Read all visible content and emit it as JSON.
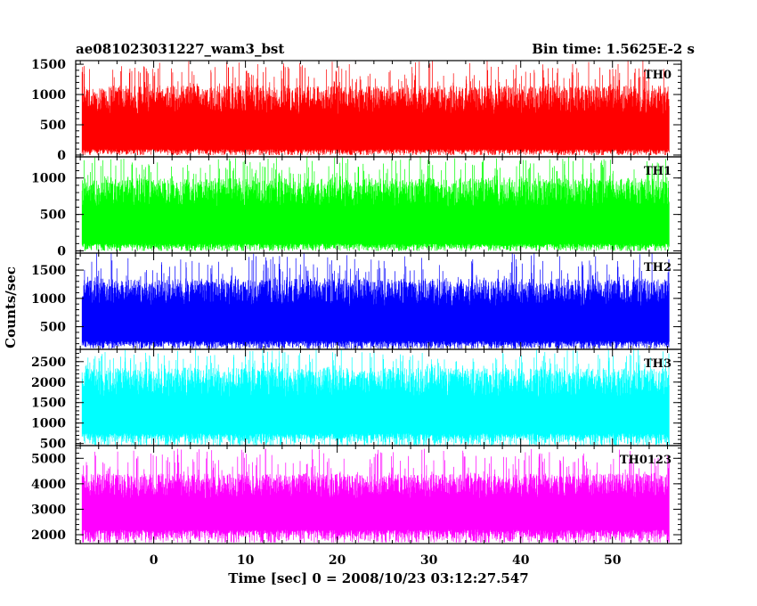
{
  "header": {
    "title": "ae081023031227_wam3_bst",
    "bin_time": "Bin time: 1.5625E-2 s"
  },
  "chart_data": {
    "type": "line",
    "xlabel": "Time [sec] 0 = 2008/10/23 03:12:27.547",
    "ylabel": "Counts/sec",
    "xlim": [
      -8.5,
      57.5
    ],
    "x_range_data": [
      -7.8,
      56.2
    ],
    "x_ticks": [
      0,
      10,
      20,
      30,
      40,
      50
    ],
    "x_tick_labels": [
      "0",
      "10",
      "20",
      "30",
      "40",
      "50"
    ],
    "panels": [
      {
        "name": "TH0",
        "color": "#ff0000",
        "ylim": [
          -30,
          1560
        ],
        "yticks": [
          0,
          500,
          1000,
          1500
        ],
        "ytick_labels": [
          "0",
          "500",
          "1000",
          "1500"
        ],
        "base_low": 100,
        "base_high": 1150,
        "spike_max": 1560,
        "floor_min": 0
      },
      {
        "name": "TH1",
        "color": "#00ff00",
        "ylim": [
          -30,
          1290
        ],
        "yticks": [
          0,
          500,
          1000
        ],
        "ytick_labels": [
          "0",
          "500",
          "1000"
        ],
        "base_low": 100,
        "base_high": 1000,
        "spike_max": 1290,
        "floor_min": 0
      },
      {
        "name": "TH2",
        "color": "#0000ff",
        "ylim": [
          100,
          1800
        ],
        "yticks": [
          500,
          1000,
          1500
        ],
        "ytick_labels": [
          "500",
          "1000",
          "1500"
        ],
        "base_low": 250,
        "base_high": 1350,
        "spike_max": 1800,
        "floor_min": 110
      },
      {
        "name": "TH3",
        "color": "#00ffff",
        "ylim": [
          450,
          2800
        ],
        "yticks": [
          500,
          1000,
          1500,
          2000,
          2500
        ],
        "ytick_labels": [
          "500",
          "1000",
          "1500",
          "2000",
          "2500"
        ],
        "base_low": 750,
        "base_high": 2350,
        "spike_max": 2800,
        "floor_min": 460
      },
      {
        "name": "TH0123",
        "color": "#ff00ff",
        "ylim": [
          1650,
          5500
        ],
        "yticks": [
          2000,
          3000,
          4000,
          5000
        ],
        "ytick_labels": [
          "2000",
          "3000",
          "4000",
          "5000"
        ],
        "base_low": 2200,
        "base_high": 4400,
        "spike_max": 5400,
        "floor_min": 1700
      }
    ]
  }
}
